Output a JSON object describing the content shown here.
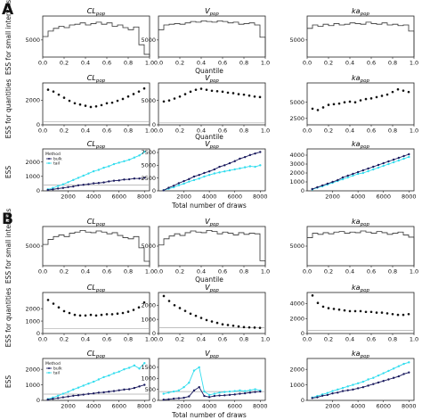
{
  "figure": {
    "sections": [
      {
        "label": "A"
      },
      {
        "label": "B"
      }
    ],
    "row_ylabels": [
      "ESS for small intervals",
      "ESS for quantities",
      "ESS"
    ],
    "xlabels": {
      "quantile": "Quantile",
      "draws": "Total number of draws"
    },
    "legend": {
      "title": "Method",
      "bulk": "bulk",
      "tail": "tail"
    },
    "colors": {
      "bulk": "#1a1a5e",
      "tail": "#33ddee",
      "step": "#333333",
      "ref": "#aaaaaa"
    },
    "params": [
      {
        "base": "CL",
        "sub": "pop"
      },
      {
        "base": "V",
        "sub": "pop"
      },
      {
        "base": "ka",
        "sub": "pop"
      }
    ]
  },
  "chart_data": [
    {
      "type": "step",
      "section": "A",
      "row": 0,
      "col": 0,
      "xlim": [
        0,
        1
      ],
      "ylim": [
        2500,
        8500
      ],
      "yticks": [
        5000
      ],
      "xticks": [
        0.0,
        0.2,
        0.4,
        0.6,
        0.8,
        1.0
      ],
      "values": [
        5500,
        6300,
        6700,
        7000,
        6800,
        7200,
        7300,
        7500,
        7200,
        7400,
        7600,
        7300,
        7500,
        7000,
        7200,
        6800,
        6500,
        6900,
        4300,
        2900
      ]
    },
    {
      "type": "step",
      "section": "A",
      "row": 0,
      "col": 1,
      "xlim": [
        0,
        1
      ],
      "ylim": [
        2500,
        8500
      ],
      "yticks": [
        5000
      ],
      "xticks": [
        0.0,
        0.2,
        0.4,
        0.6,
        0.8,
        1.0
      ],
      "values": [
        6500,
        7200,
        7300,
        7400,
        7300,
        7500,
        7700,
        7600,
        7800,
        7700,
        7600,
        7800,
        7700,
        7500,
        7600,
        7300,
        7400,
        7500,
        7200,
        5400
      ]
    },
    {
      "type": "step",
      "section": "A",
      "row": 0,
      "col": 2,
      "xlim": [
        0,
        1
      ],
      "ylim": [
        2500,
        8500
      ],
      "yticks": [
        5000
      ],
      "xticks": [
        0.0,
        0.2,
        0.4,
        0.6,
        0.8,
        1.0
      ],
      "values": [
        6700,
        7200,
        7000,
        7300,
        7100,
        7400,
        7200,
        7300,
        7500,
        7400,
        7300,
        7600,
        7400,
        7300,
        7500,
        7200,
        7300,
        7100,
        7200,
        6300
      ]
    },
    {
      "type": "scatter",
      "section": "A",
      "row": 1,
      "col": 0,
      "xlim": [
        0,
        1
      ],
      "ylim": [
        0,
        3400
      ],
      "yticks": [
        0,
        2000
      ],
      "xticks": [
        0.0,
        0.2,
        0.4,
        0.6,
        0.8,
        1.0
      ],
      "ref": 250,
      "x": [
        0.05,
        0.1,
        0.15,
        0.2,
        0.25,
        0.3,
        0.35,
        0.4,
        0.45,
        0.5,
        0.55,
        0.6,
        0.65,
        0.7,
        0.75,
        0.8,
        0.85,
        0.9,
        0.95
      ],
      "y": [
        2850,
        2700,
        2450,
        2200,
        1950,
        1750,
        1650,
        1550,
        1450,
        1500,
        1600,
        1750,
        1800,
        1950,
        2100,
        2300,
        2500,
        2700,
        2950
      ]
    },
    {
      "type": "scatter",
      "section": "A",
      "row": 1,
      "col": 1,
      "xlim": [
        0,
        1
      ],
      "ylim": [
        0,
        8600
      ],
      "yticks": [
        0,
        5000
      ],
      "xticks": [
        0.0,
        0.2,
        0.4,
        0.6,
        0.8,
        1.0
      ],
      "ref": 400,
      "x": [
        0.05,
        0.1,
        0.15,
        0.2,
        0.25,
        0.3,
        0.35,
        0.4,
        0.45,
        0.5,
        0.55,
        0.6,
        0.65,
        0.7,
        0.75,
        0.8,
        0.85,
        0.9,
        0.95
      ],
      "y": [
        4800,
        5000,
        5400,
        5800,
        6300,
        6800,
        7200,
        7400,
        7200,
        7000,
        6900,
        6800,
        6600,
        6500,
        6300,
        6200,
        6000,
        5800,
        5700
      ]
    },
    {
      "type": "scatter",
      "section": "A",
      "row": 1,
      "col": 2,
      "xlim": [
        0,
        1
      ],
      "ylim": [
        1500,
        8000
      ],
      "yticks": [
        2500,
        5000
      ],
      "xticks": [
        0.0,
        0.2,
        0.4,
        0.6,
        0.8,
        1.0
      ],
      "ref": null,
      "x": [
        0.05,
        0.1,
        0.15,
        0.2,
        0.25,
        0.3,
        0.35,
        0.4,
        0.45,
        0.5,
        0.55,
        0.6,
        0.65,
        0.7,
        0.75,
        0.8,
        0.85,
        0.9,
        0.95
      ],
      "y": [
        4000,
        3800,
        4200,
        4600,
        4700,
        4800,
        5000,
        5100,
        5000,
        5300,
        5500,
        5600,
        5800,
        6000,
        6200,
        6600,
        7000,
        6800,
        6600
      ]
    },
    {
      "type": "line",
      "section": "A",
      "row": 2,
      "col": 0,
      "xlim": [
        0,
        8400
      ],
      "ylim": [
        0,
        2900
      ],
      "yticks": [
        0,
        1000,
        2000
      ],
      "xticks": [
        2000,
        4000,
        6000,
        8000
      ],
      "ref": 400,
      "legend": true,
      "x": [
        400,
        800,
        1200,
        1600,
        2000,
        2400,
        2800,
        3200,
        3600,
        4000,
        4400,
        4800,
        5200,
        5600,
        6000,
        6400,
        6800,
        7200,
        7600,
        8000
      ],
      "series": [
        {
          "name": "bulk",
          "values": [
            60,
            100,
            160,
            200,
            260,
            300,
            380,
            420,
            460,
            520,
            540,
            580,
            650,
            700,
            720,
            780,
            800,
            850,
            850,
            900
          ]
        },
        {
          "name": "tail",
          "values": [
            100,
            200,
            330,
            450,
            600,
            750,
            900,
            1050,
            1200,
            1350,
            1450,
            1600,
            1700,
            1850,
            1950,
            2050,
            2150,
            2300,
            2450,
            2700
          ]
        }
      ]
    },
    {
      "type": "line",
      "section": "A",
      "row": 2,
      "col": 1,
      "xlim": [
        0,
        8400
      ],
      "ylim": [
        0,
        8200
      ],
      "yticks": [
        0,
        2500,
        5000,
        7500
      ],
      "xticks": [
        2000,
        4000,
        6000,
        8000
      ],
      "ref": null,
      "x": [
        400,
        800,
        1200,
        1600,
        2000,
        2400,
        2800,
        3200,
        3600,
        4000,
        4400,
        4800,
        5200,
        5600,
        6000,
        6400,
        6800,
        7200,
        7600,
        8000
      ],
      "series": [
        {
          "name": "bulk",
          "values": [
            100,
            600,
            1000,
            1500,
            1900,
            2300,
            2800,
            3100,
            3500,
            3800,
            4200,
            4700,
            5000,
            5400,
            5800,
            6300,
            6600,
            7000,
            7300,
            7600
          ]
        },
        {
          "name": "tail",
          "values": [
            120,
            400,
            700,
            1100,
            1400,
            1800,
            2100,
            2400,
            2800,
            3100,
            3400,
            3600,
            3800,
            4000,
            4200,
            4400,
            4600,
            4800,
            4700,
            5000
          ]
        }
      ]
    },
    {
      "type": "line",
      "section": "A",
      "row": 2,
      "col": 2,
      "xlim": [
        0,
        8400
      ],
      "ylim": [
        0,
        4700
      ],
      "yticks": [
        0,
        1000,
        2000,
        3000,
        4000
      ],
      "xticks": [
        2000,
        4000,
        6000,
        8000
      ],
      "ref": null,
      "x": [
        400,
        800,
        1200,
        1600,
        2000,
        2400,
        2800,
        3200,
        3600,
        4000,
        4400,
        4800,
        5200,
        5600,
        6000,
        6400,
        6800,
        7200,
        7600,
        8000
      ],
      "series": [
        {
          "name": "bulk",
          "values": [
            200,
            400,
            600,
            800,
            1000,
            1200,
            1500,
            1700,
            1900,
            2100,
            2300,
            2500,
            2700,
            2900,
            3100,
            3300,
            3500,
            3700,
            3900,
            4100
          ]
        },
        {
          "name": "tail",
          "values": [
            150,
            350,
            500,
            700,
            900,
            1100,
            1300,
            1500,
            1700,
            1900,
            2000,
            2200,
            2400,
            2600,
            2800,
            3000,
            3200,
            3400,
            3600,
            3800
          ]
        }
      ]
    },
    {
      "type": "step",
      "section": "B",
      "row": 0,
      "col": 0,
      "xlim": [
        0,
        1
      ],
      "ylim": [
        1500,
        8500
      ],
      "yticks": [
        5000
      ],
      "xticks": [
        0.0,
        0.2,
        0.4,
        0.6,
        0.8,
        1.0
      ],
      "values": [
        5300,
        6200,
        6700,
        7000,
        6700,
        7300,
        7500,
        7800,
        7500,
        7400,
        7700,
        7500,
        7200,
        7400,
        6900,
        6500,
        6300,
        6700,
        4700,
        2300
      ]
    },
    {
      "type": "step",
      "section": "B",
      "row": 0,
      "col": 1,
      "xlim": [
        0,
        1
      ],
      "ylim": [
        1500,
        8500
      ],
      "yticks": [
        5000
      ],
      "xticks": [
        0.0,
        0.2,
        0.4,
        0.6,
        0.8,
        1.0
      ],
      "values": [
        5200,
        6300,
        6800,
        7200,
        6900,
        7400,
        7700,
        7500,
        7400,
        7800,
        7600,
        7200,
        7500,
        7300,
        7000,
        7400,
        7100,
        7300,
        7200,
        2400
      ]
    },
    {
      "type": "step",
      "section": "B",
      "row": 0,
      "col": 2,
      "xlim": [
        0,
        1
      ],
      "ylim": [
        1500,
        8500
      ],
      "yticks": [
        5000
      ],
      "xticks": [
        0.0,
        0.2,
        0.4,
        0.6,
        0.8,
        1.0
      ],
      "values": [
        6500,
        7300,
        7100,
        7400,
        7200,
        7500,
        7600,
        7300,
        7500,
        7400,
        7700,
        7500,
        7300,
        7600,
        7400,
        7100,
        7300,
        7500,
        7000,
        6600
      ]
    },
    {
      "type": "scatter",
      "section": "B",
      "row": 1,
      "col": 0,
      "xlim": [
        0,
        1
      ],
      "ylim": [
        0,
        3300
      ],
      "yticks": [
        0,
        1000,
        2000
      ],
      "xticks": [
        0.0,
        0.2,
        0.4,
        0.6,
        0.8,
        1.0
      ],
      "ref": 400,
      "x": [
        0.05,
        0.1,
        0.15,
        0.2,
        0.25,
        0.3,
        0.35,
        0.4,
        0.45,
        0.5,
        0.55,
        0.6,
        0.65,
        0.7,
        0.75,
        0.8,
        0.85,
        0.9,
        0.95
      ],
      "y": [
        2700,
        2400,
        2100,
        1800,
        1650,
        1500,
        1450,
        1450,
        1500,
        1450,
        1500,
        1550,
        1550,
        1600,
        1650,
        1750,
        1900,
        2100,
        2500
      ]
    },
    {
      "type": "scatter",
      "section": "B",
      "row": 1,
      "col": 1,
      "xlim": [
        0,
        1
      ],
      "ylim": [
        0,
        2900
      ],
      "yticks": [
        0,
        1000,
        2000
      ],
      "xticks": [
        0.0,
        0.2,
        0.4,
        0.6,
        0.8,
        1.0
      ],
      "ref": 400,
      "x": [
        0.05,
        0.1,
        0.15,
        0.2,
        0.25,
        0.3,
        0.35,
        0.4,
        0.45,
        0.5,
        0.55,
        0.6,
        0.65,
        0.7,
        0.75,
        0.8,
        0.85,
        0.9,
        0.95
      ],
      "y": [
        2650,
        2300,
        2000,
        1800,
        1600,
        1400,
        1250,
        1100,
        950,
        850,
        750,
        650,
        600,
        550,
        500,
        450,
        430,
        420,
        400
      ]
    },
    {
      "type": "scatter",
      "section": "B",
      "row": 1,
      "col": 2,
      "xlim": [
        0,
        1
      ],
      "ylim": [
        0,
        5500
      ],
      "yticks": [
        0,
        2000,
        4000
      ],
      "xticks": [
        0.0,
        0.2,
        0.4,
        0.6,
        0.8,
        1.0
      ],
      "ref": 400,
      "x": [
        0.05,
        0.1,
        0.15,
        0.2,
        0.25,
        0.3,
        0.35,
        0.4,
        0.45,
        0.5,
        0.55,
        0.6,
        0.65,
        0.7,
        0.75,
        0.8,
        0.85,
        0.9,
        0.95
      ],
      "y": [
        5100,
        4100,
        3600,
        3400,
        3300,
        3200,
        3100,
        3000,
        3000,
        3000,
        2900,
        2900,
        2800,
        2800,
        2700,
        2600,
        2500,
        2500,
        2600
      ]
    },
    {
      "type": "line",
      "section": "B",
      "row": 2,
      "col": 0,
      "xlim": [
        0,
        8400
      ],
      "ylim": [
        0,
        2700
      ],
      "yticks": [
        0,
        1000,
        2000
      ],
      "xticks": [
        2000,
        4000,
        6000,
        8000
      ],
      "ref": 400,
      "legend": true,
      "x": [
        400,
        800,
        1200,
        1600,
        2000,
        2400,
        2800,
        3200,
        3600,
        4000,
        4400,
        4800,
        5200,
        5600,
        6000,
        6400,
        6800,
        7200,
        7600,
        8000
      ],
      "series": [
        {
          "name": "bulk",
          "values": [
            50,
            100,
            150,
            200,
            250,
            300,
            330,
            370,
            420,
            450,
            500,
            520,
            560,
            600,
            650,
            700,
            720,
            800,
            900,
            1000
          ]
        },
        {
          "name": "tail",
          "values": [
            80,
            180,
            300,
            430,
            550,
            700,
            820,
            950,
            1080,
            1200,
            1350,
            1500,
            1600,
            1750,
            1850,
            2000,
            2100,
            2250,
            2050,
            2400
          ]
        }
      ]
    },
    {
      "type": "line",
      "section": "B",
      "row": 2,
      "col": 1,
      "xlim": [
        0,
        8400
      ],
      "ylim": [
        0,
        1900
      ],
      "yticks": [
        0,
        500,
        1000,
        1500
      ],
      "xticks": [
        2000,
        4000,
        6000,
        8000
      ],
      "ref": 400,
      "x": [
        400,
        800,
        1200,
        1600,
        2000,
        2400,
        2800,
        3200,
        3600,
        4000,
        4400,
        4800,
        5200,
        5600,
        6000,
        6400,
        6800,
        7200,
        7600,
        8000
      ],
      "series": [
        {
          "name": "bulk",
          "values": [
            30,
            50,
            80,
            100,
            120,
            180,
            450,
            600,
            200,
            150,
            200,
            220,
            230,
            250,
            270,
            300,
            320,
            350,
            380,
            400
          ]
        },
        {
          "name": "tail",
          "values": [
            300,
            350,
            400,
            450,
            600,
            800,
            1350,
            1500,
            400,
            250,
            300,
            350,
            380,
            400,
            420,
            450,
            420,
            460,
            500,
            450
          ]
        }
      ]
    },
    {
      "type": "line",
      "section": "B",
      "row": 2,
      "col": 2,
      "xlim": [
        0,
        8400
      ],
      "ylim": [
        0,
        2700
      ],
      "yticks": [
        0,
        1000,
        2000
      ],
      "xticks": [
        2000,
        4000,
        6000,
        8000
      ],
      "ref": null,
      "x": [
        400,
        800,
        1200,
        1600,
        2000,
        2400,
        2800,
        3200,
        3600,
        4000,
        4400,
        4800,
        5200,
        5600,
        6000,
        6400,
        6800,
        7200,
        7600,
        8000
      ],
      "series": [
        {
          "name": "bulk",
          "values": [
            150,
            200,
            300,
            350,
            450,
            500,
            600,
            650,
            700,
            780,
            850,
            950,
            1050,
            1150,
            1250,
            1350,
            1450,
            1550,
            1700,
            1800
          ]
        },
        {
          "name": "tail",
          "values": [
            180,
            280,
            380,
            480,
            600,
            700,
            800,
            900,
            1000,
            1100,
            1200,
            1350,
            1450,
            1600,
            1750,
            1900,
            2050,
            2200,
            2350,
            2450
          ]
        }
      ]
    }
  ]
}
